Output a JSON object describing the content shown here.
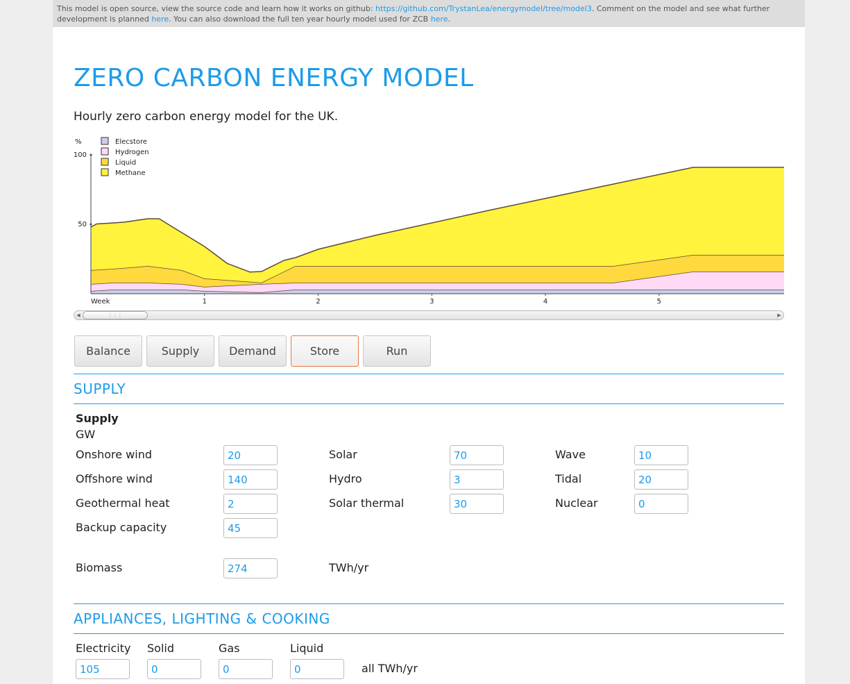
{
  "notice": {
    "text_before": "This model is open source, view the source code and learn how it works on github: ",
    "github_link": "https://github.com/TrystanLea/energymodel/tree/model3",
    "text_middle": ". Comment on the model and see what further development is planned ",
    "planned_link": "here",
    "text_after": ". You can also download the full ten year hourly model used for ZCB ",
    "download_link": "here",
    "text_end": "."
  },
  "header": {
    "title": "ZERO CARBON ENERGY MODEL",
    "subtitle": "Hourly zero carbon energy model for the UK."
  },
  "chart_data": {
    "type": "area",
    "ylabel": "%",
    "yticks": [
      "100",
      "50"
    ],
    "ylim": [
      0,
      100
    ],
    "xlabel_first": "Week",
    "xticks": [
      "1",
      "2",
      "3",
      "4",
      "5"
    ],
    "xlim": [
      0,
      6.1
    ],
    "legend_position": "top-left",
    "stacked": true,
    "series": [
      {
        "name": "Elecstore",
        "color": "#ccccee",
        "x": [
          0,
          0.2,
          0.5,
          0.8,
          1.0,
          1.5,
          1.8,
          2.5,
          4.6,
          5.3,
          6.1
        ],
        "values": [
          2,
          3,
          3,
          3,
          2,
          1,
          3,
          3,
          3,
          3,
          3
        ]
      },
      {
        "name": "Hydrogen",
        "color": "#ffd9f5",
        "x": [
          0,
          0.2,
          0.5,
          0.8,
          1.0,
          1.5,
          1.8,
          2.5,
          4.6,
          5.3,
          6.1
        ],
        "values": [
          5,
          5,
          5,
          4,
          3,
          6,
          5,
          5,
          5,
          13,
          13
        ]
      },
      {
        "name": "Liquid",
        "color": "#ffd93e",
        "x": [
          0,
          0.2,
          0.5,
          0.8,
          1.0,
          1.5,
          1.8,
          2.5,
          4.6,
          5.3,
          6.1
        ],
        "values": [
          10,
          10,
          12,
          10,
          6,
          1,
          12,
          12,
          12,
          12,
          12
        ]
      },
      {
        "name": "Methane",
        "color": "#fff33e",
        "x": [
          0,
          0.05,
          0.2,
          0.3,
          0.5,
          0.6,
          0.8,
          1.0,
          1.2,
          1.4,
          1.5,
          1.7,
          1.8,
          2.0,
          2.5,
          3.5,
          4.6,
          5.3,
          6.1
        ],
        "values": [
          31,
          33,
          33,
          33,
          34,
          35,
          27,
          23,
          12,
          7,
          8,
          8,
          6,
          12,
          22,
          40,
          59,
          63,
          63
        ]
      }
    ]
  },
  "buttons": {
    "balance": "Balance",
    "supply": "Supply",
    "demand": "Demand",
    "store": "Store",
    "run": "Run"
  },
  "supply": {
    "section_title": "SUPPLY",
    "heading": "Supply",
    "unit": "GW",
    "onshore_wind": {
      "label": "Onshore wind",
      "value": "20"
    },
    "offshore_wind": {
      "label": "Offshore wind",
      "value": "140"
    },
    "geothermal": {
      "label": "Geothermal heat",
      "value": "2"
    },
    "backup": {
      "label": "Backup capacity",
      "value": "45"
    },
    "solar": {
      "label": "Solar",
      "value": "70"
    },
    "hydro": {
      "label": "Hydro",
      "value": "3"
    },
    "solar_thermal": {
      "label": "Solar thermal",
      "value": "30"
    },
    "wave": {
      "label": "Wave",
      "value": "10"
    },
    "tidal": {
      "label": "Tidal",
      "value": "20"
    },
    "nuclear": {
      "label": "Nuclear",
      "value": "0"
    },
    "biomass": {
      "label": "Biomass",
      "value": "274",
      "unit": "TWh/yr"
    }
  },
  "appliances": {
    "section_title": "APPLIANCES, LIGHTING & COOKING",
    "electricity": {
      "label": "Electricity",
      "value": "105"
    },
    "solid": {
      "label": "Solid",
      "value": "0"
    },
    "gas": {
      "label": "Gas",
      "value": "0"
    },
    "liquid": {
      "label": "Liquid",
      "value": "0"
    },
    "unit": "all TWh/yr"
  },
  "colors": {
    "accent": "#1e9be8",
    "active_button_border": "#e8774a"
  }
}
